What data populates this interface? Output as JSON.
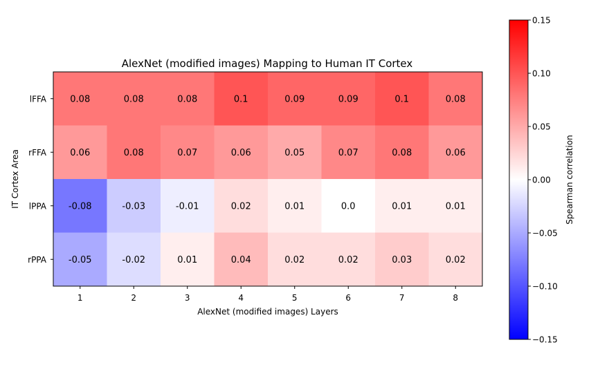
{
  "chart_data": {
    "type": "heatmap",
    "title": "AlexNet (modified images) Mapping to Human IT Cortex",
    "xlabel": "AlexNet (modified images) Layers",
    "ylabel": "IT Cortex Area",
    "x_categories": [
      "1",
      "2",
      "3",
      "4",
      "5",
      "6",
      "7",
      "8"
    ],
    "y_categories": [
      "lFFA",
      "rFFA",
      "lPPA",
      "rPPA"
    ],
    "values": [
      [
        0.08,
        0.08,
        0.08,
        0.1,
        0.09,
        0.09,
        0.1,
        0.08
      ],
      [
        0.06,
        0.08,
        0.07,
        0.06,
        0.05,
        0.07,
        0.08,
        0.06
      ],
      [
        -0.08,
        -0.03,
        -0.01,
        0.02,
        0.01,
        0.0,
        0.01,
        0.01
      ],
      [
        -0.05,
        -0.02,
        0.01,
        0.04,
        0.02,
        0.02,
        0.03,
        0.02
      ]
    ],
    "value_labels": [
      [
        "0.08",
        "0.08",
        "0.08",
        "0.1",
        "0.09",
        "0.09",
        "0.1",
        "0.08"
      ],
      [
        "0.06",
        "0.08",
        "0.07",
        "0.06",
        "0.05",
        "0.07",
        "0.08",
        "0.06"
      ],
      [
        "-0.08",
        "-0.03",
        "-0.01",
        "0.02",
        "0.01",
        "0.0",
        "0.01",
        "0.01"
      ],
      [
        "-0.05",
        "-0.02",
        "0.01",
        "0.04",
        "0.02",
        "0.02",
        "0.03",
        "0.02"
      ]
    ],
    "colorbar": {
      "label": "Spearman correlation",
      "vmin": -0.15,
      "vmax": 0.15,
      "ticks": [
        0.15,
        0.1,
        0.05,
        0.0,
        -0.05,
        -0.1,
        -0.15
      ],
      "tick_labels": [
        "0.15",
        "0.10",
        "0.05",
        "0.00",
        "−0.05",
        "−0.10",
        "−0.15"
      ],
      "colormap": "bwr",
      "low_color": "#0000ff",
      "mid_color": "#ffffff",
      "high_color": "#ff0000"
    }
  }
}
